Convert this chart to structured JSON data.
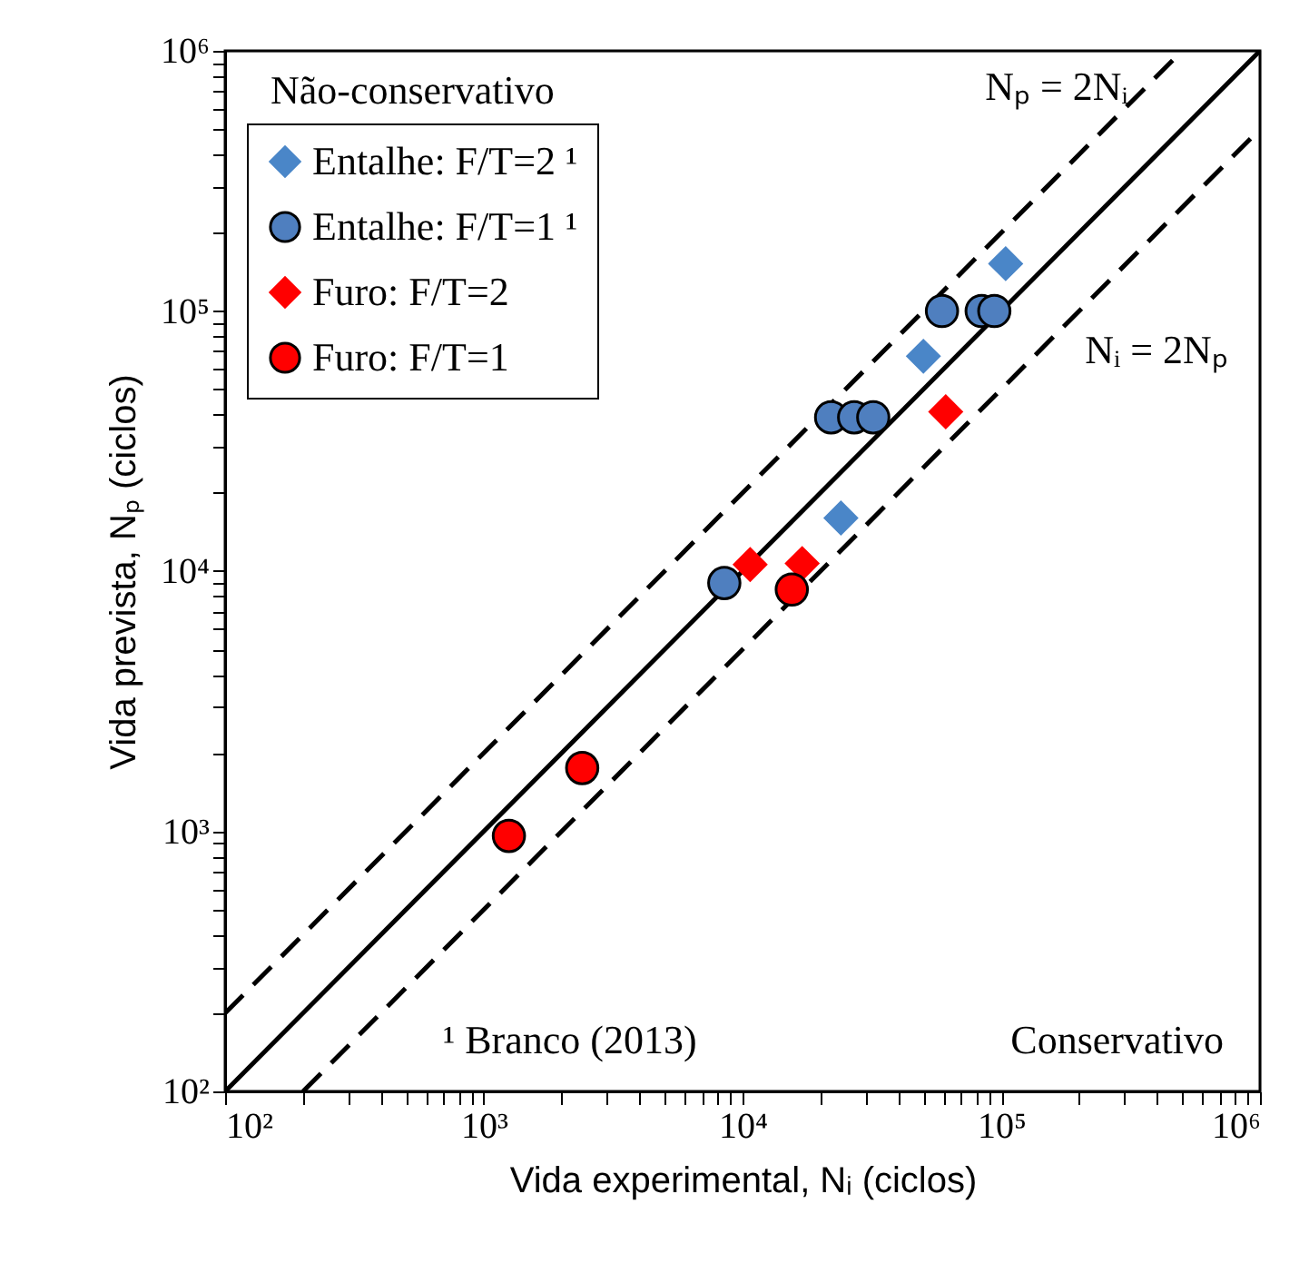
{
  "chart_data": {
    "type": "scatter",
    "xlabel": "Vida experimental, Nᵢ (ciclos)",
    "ylabel": "Vida prevista, Nₚ (ciclos)",
    "log": "xy",
    "xlim": [
      100,
      1000000
    ],
    "ylim": [
      100,
      1000000
    ],
    "xticks": [
      {
        "value": 100,
        "label": "10²"
      },
      {
        "value": 200,
        "label": null
      },
      {
        "value": 300,
        "label": null
      },
      {
        "value": 400,
        "label": null
      },
      {
        "value": 500,
        "label": null
      },
      {
        "value": 600,
        "label": null
      },
      {
        "value": 700,
        "label": null
      },
      {
        "value": 800,
        "label": null
      },
      {
        "value": 900,
        "label": null
      },
      {
        "value": 1000,
        "label": "10³"
      },
      {
        "value": 2000,
        "label": null
      },
      {
        "value": 3000,
        "label": null
      },
      {
        "value": 4000,
        "label": null
      },
      {
        "value": 5000,
        "label": null
      },
      {
        "value": 6000,
        "label": null
      },
      {
        "value": 7000,
        "label": null
      },
      {
        "value": 8000,
        "label": null
      },
      {
        "value": 9000,
        "label": null
      },
      {
        "value": 10000,
        "label": "10⁴"
      },
      {
        "value": 20000,
        "label": null
      },
      {
        "value": 30000,
        "label": null
      },
      {
        "value": 40000,
        "label": null
      },
      {
        "value": 50000,
        "label": null
      },
      {
        "value": 60000,
        "label": null
      },
      {
        "value": 70000,
        "label": null
      },
      {
        "value": 80000,
        "label": null
      },
      {
        "value": 90000,
        "label": null
      },
      {
        "value": 100000,
        "label": "10⁵"
      },
      {
        "value": 200000,
        "label": null
      },
      {
        "value": 300000,
        "label": null
      },
      {
        "value": 400000,
        "label": null
      },
      {
        "value": 500000,
        "label": null
      },
      {
        "value": 600000,
        "label": null
      },
      {
        "value": 700000,
        "label": null
      },
      {
        "value": 800000,
        "label": null
      },
      {
        "value": 900000,
        "label": null
      },
      {
        "value": 1000000,
        "label": "10⁶"
      }
    ],
    "yticks": [
      {
        "value": 100,
        "label": "10²"
      },
      {
        "value": 200,
        "label": null
      },
      {
        "value": 300,
        "label": null
      },
      {
        "value": 400,
        "label": null
      },
      {
        "value": 500,
        "label": null
      },
      {
        "value": 600,
        "label": null
      },
      {
        "value": 700,
        "label": null
      },
      {
        "value": 800,
        "label": null
      },
      {
        "value": 900,
        "label": null
      },
      {
        "value": 1000,
        "label": "10³"
      },
      {
        "value": 2000,
        "label": null
      },
      {
        "value": 3000,
        "label": null
      },
      {
        "value": 4000,
        "label": null
      },
      {
        "value": 5000,
        "label": null
      },
      {
        "value": 6000,
        "label": null
      },
      {
        "value": 7000,
        "label": null
      },
      {
        "value": 8000,
        "label": null
      },
      {
        "value": 9000,
        "label": null
      },
      {
        "value": 10000,
        "label": "10⁴"
      },
      {
        "value": 20000,
        "label": null
      },
      {
        "value": 30000,
        "label": null
      },
      {
        "value": 40000,
        "label": null
      },
      {
        "value": 50000,
        "label": null
      },
      {
        "value": 60000,
        "label": null
      },
      {
        "value": 70000,
        "label": null
      },
      {
        "value": 80000,
        "label": null
      },
      {
        "value": 90000,
        "label": null
      },
      {
        "value": 100000,
        "label": "10⁵"
      },
      {
        "value": 200000,
        "label": null
      },
      {
        "value": 300000,
        "label": null
      },
      {
        "value": 400000,
        "label": null
      },
      {
        "value": 500000,
        "label": null
      },
      {
        "value": 600000,
        "label": null
      },
      {
        "value": 700000,
        "label": null
      },
      {
        "value": 800000,
        "label": null
      },
      {
        "value": 900000,
        "label": null
      },
      {
        "value": 1000000,
        "label": "10⁶"
      }
    ],
    "grid": false,
    "legend": "top left",
    "series": [
      {
        "name": "Entalhe: F/T=2 ¹",
        "color": "#4a86c8",
        "marker": "diamond",
        "x": [
          104000,
          50000,
          24000
        ],
        "values": [
          152000,
          67000,
          16000
        ]
      },
      {
        "name": "Entalhe: F/T=1 ¹",
        "color": "#4f7fbf",
        "marker": "circle",
        "x": [
          59000,
          84000,
          94000,
          22000,
          27000,
          32000,
          8500
        ],
        "values": [
          100000,
          100000,
          100000,
          39000,
          39000,
          39000,
          9000
        ]
      },
      {
        "name": "Furo: F/T=2",
        "color": "#ff0000",
        "marker": "diamond",
        "x": [
          61000,
          10700,
          17000
        ],
        "values": [
          41000,
          10600,
          10700
        ]
      },
      {
        "name": "Furo: F/T=1",
        "color": "#ff0000",
        "marker": "circle",
        "x": [
          15500,
          2400,
          1250
        ],
        "values": [
          8500,
          1750,
          960
        ]
      },
      {
        "type": "line",
        "color": "#000000",
        "line_style": "solid",
        "x": [
          100,
          1000000
        ],
        "values": [
          100,
          1000000
        ]
      },
      {
        "type": "line",
        "color": "#000000",
        "line_style": "dashed",
        "x": [
          100,
          500000
        ],
        "values": [
          200,
          1000000
        ]
      },
      {
        "type": "line",
        "color": "#000000",
        "line_style": "dashed",
        "x": [
          200,
          1000000
        ],
        "values": [
          100,
          500000
        ]
      }
    ],
    "annotations": [
      "Nₚ = 2Nᵢ",
      "Nᵢ = 2Nₚ",
      "Não-conservativo",
      "¹ Branco (2013)",
      "Conservativo"
    ]
  }
}
